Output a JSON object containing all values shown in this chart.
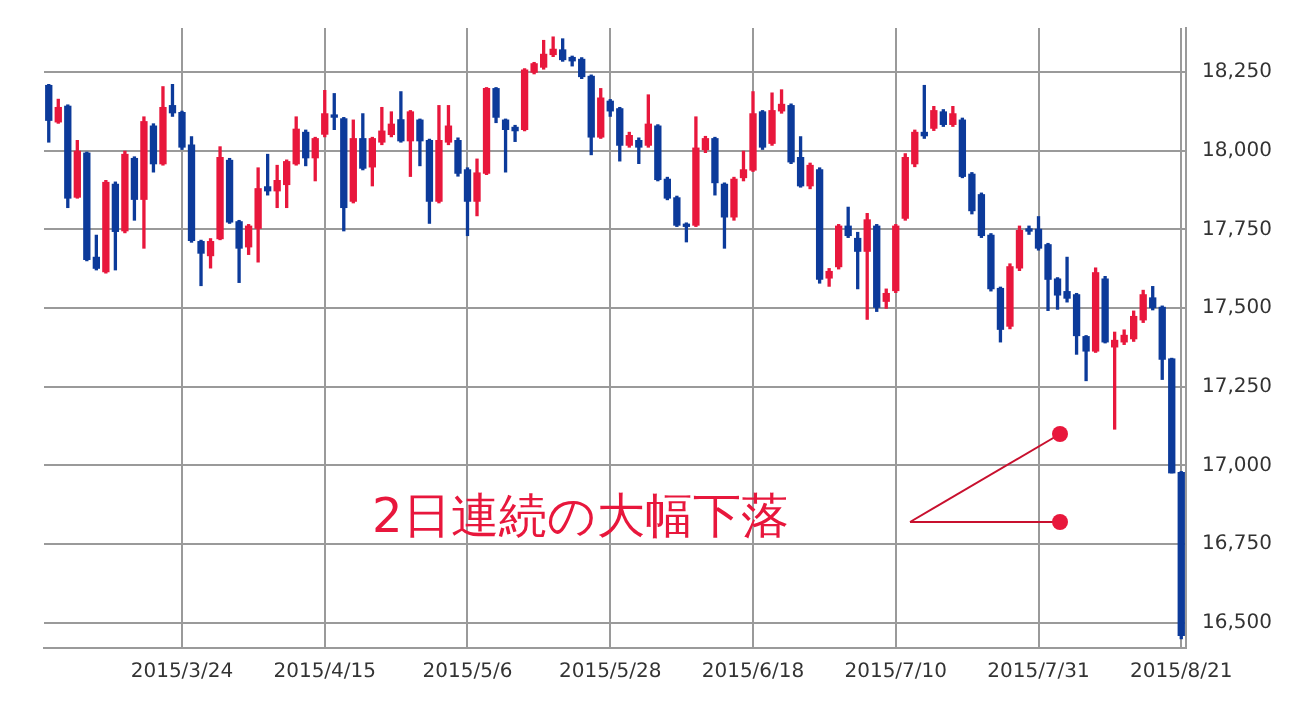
{
  "chart_data": {
    "type": "candlestick",
    "categories": [
      null,
      null,
      null,
      null,
      null,
      null,
      null,
      null,
      null,
      null,
      null,
      null,
      null,
      null,
      "2015/3/24",
      null,
      null,
      null,
      null,
      null,
      null,
      null,
      null,
      null,
      null,
      null,
      null,
      null,
      null,
      "2015/4/15",
      null,
      null,
      null,
      null,
      null,
      null,
      null,
      null,
      null,
      null,
      null,
      null,
      null,
      null,
      "2015/5/6",
      null,
      null,
      null,
      null,
      null,
      null,
      null,
      null,
      null,
      null,
      null,
      null,
      null,
      null,
      "2015/5/28",
      null,
      null,
      null,
      null,
      null,
      null,
      null,
      null,
      null,
      null,
      null,
      null,
      null,
      null,
      "2015/6/18",
      null,
      null,
      null,
      null,
      null,
      null,
      null,
      null,
      null,
      null,
      null,
      null,
      null,
      null,
      "2015/7/10",
      null,
      null,
      null,
      null,
      null,
      null,
      null,
      null,
      null,
      null,
      null,
      null,
      null,
      null,
      "2015/7/31",
      null,
      null,
      null,
      null,
      null,
      null,
      null,
      null,
      null,
      null,
      null,
      null,
      null,
      null,
      "2015/8/21"
    ],
    "ohlc": [
      [
        18207,
        18210,
        18028,
        18097
      ],
      [
        18092,
        18163,
        18088,
        18137
      ],
      [
        18141,
        18145,
        17820,
        17850
      ],
      [
        17853,
        18032,
        17850,
        17998
      ],
      [
        17992,
        17995,
        17651,
        17655
      ],
      [
        17661,
        17731,
        17622,
        17627
      ],
      [
        17616,
        17905,
        17612,
        17899
      ],
      [
        17893,
        17900,
        17622,
        17744
      ],
      [
        17746,
        17998,
        17740,
        17988
      ],
      [
        17975,
        17980,
        17780,
        17846
      ],
      [
        17846,
        18107,
        17691,
        18092
      ],
      [
        18078,
        18085,
        17933,
        17959
      ],
      [
        17959,
        18203,
        17955,
        18137
      ],
      [
        18143,
        18210,
        18110,
        18121
      ],
      [
        18121,
        18125,
        18005,
        18012
      ],
      [
        18018,
        18044,
        17710,
        17715
      ],
      [
        17711,
        17715,
        17572,
        17675
      ],
      [
        17667,
        17720,
        17628,
        17711
      ],
      [
        17721,
        18012,
        17718,
        17978
      ],
      [
        17969,
        17975,
        17770,
        17774
      ],
      [
        17774,
        17778,
        17582,
        17691
      ],
      [
        17695,
        17765,
        17671,
        17760
      ],
      [
        17754,
        17945,
        17647,
        17879
      ],
      [
        17885,
        17988,
        17860,
        17873
      ],
      [
        17873,
        17953,
        17820,
        17905
      ],
      [
        17893,
        17970,
        17820,
        17965
      ],
      [
        17959,
        18107,
        17955,
        18068
      ],
      [
        18058,
        18065,
        17953,
        17978
      ],
      [
        17978,
        18042,
        17905,
        18038
      ],
      [
        18053,
        18191,
        18045,
        18117
      ],
      [
        18111,
        18181,
        18068,
        18107
      ],
      [
        18101,
        18105,
        17746,
        17820
      ],
      [
        17840,
        18097,
        17835,
        18038
      ],
      [
        18038,
        18117,
        17940,
        17945
      ],
      [
        17949,
        18042,
        17889,
        18038
      ],
      [
        18028,
        18137,
        18020,
        18062
      ],
      [
        18052,
        18123,
        18045,
        18084
      ],
      [
        18098,
        18187,
        18028,
        18032
      ],
      [
        18032,
        18127,
        17919,
        18123
      ],
      [
        18097,
        18100,
        17953,
        18032
      ],
      [
        18032,
        18036,
        17770,
        17840
      ],
      [
        17840,
        18143,
        17835,
        18032
      ],
      [
        18028,
        18143,
        18020,
        18078
      ],
      [
        18032,
        18040,
        17920,
        17929
      ],
      [
        17939,
        17945,
        17731,
        17840
      ],
      [
        17840,
        17973,
        17794,
        17929
      ],
      [
        17929,
        18200,
        17925,
        18197
      ],
      [
        18197,
        18200,
        18090,
        18107
      ],
      [
        18097,
        18100,
        17933,
        18068
      ],
      [
        18074,
        18080,
        18030,
        18064
      ],
      [
        18068,
        18260,
        18064,
        18256
      ],
      [
        18250,
        18280,
        18245,
        18276
      ],
      [
        18266,
        18350,
        18260,
        18306
      ],
      [
        18306,
        18361,
        18300,
        18322
      ],
      [
        18320,
        18355,
        18285,
        18290
      ],
      [
        18296,
        18300,
        18270,
        18286
      ],
      [
        18290,
        18295,
        18230,
        18236
      ],
      [
        18236,
        18240,
        17988,
        18044
      ],
      [
        18044,
        18197,
        18040,
        18167
      ],
      [
        18157,
        18162,
        18110,
        18127
      ],
      [
        18133,
        18137,
        17968,
        18018
      ],
      [
        18018,
        18058,
        18012,
        18048
      ],
      [
        18032,
        18040,
        17960,
        18012
      ],
      [
        18018,
        18177,
        18012,
        18084
      ],
      [
        18078,
        18082,
        17905,
        17909
      ],
      [
        17909,
        17915,
        17845,
        17850
      ],
      [
        17850,
        17855,
        17760,
        17764
      ],
      [
        17766,
        17770,
        17711,
        17760
      ],
      [
        17764,
        18107,
        17760,
        18008
      ],
      [
        18004,
        18045,
        17995,
        18038
      ],
      [
        18038,
        18042,
        17860,
        17899
      ],
      [
        17893,
        17897,
        17691,
        17790
      ],
      [
        17790,
        17915,
        17780,
        17909
      ],
      [
        17915,
        17998,
        17905,
        17939
      ],
      [
        17939,
        18187,
        17935,
        18117
      ],
      [
        18123,
        18127,
        18005,
        18012
      ],
      [
        18024,
        18183,
        18018,
        18127
      ],
      [
        18127,
        18193,
        18120,
        18147
      ],
      [
        18143,
        18148,
        17960,
        17965
      ],
      [
        17978,
        18044,
        17885,
        17889
      ],
      [
        17889,
        17960,
        17880,
        17953
      ],
      [
        17939,
        17945,
        17580,
        17592
      ],
      [
        17596,
        17625,
        17570,
        17616
      ],
      [
        17632,
        17765,
        17625,
        17760
      ],
      [
        17760,
        17820,
        17725,
        17731
      ],
      [
        17721,
        17740,
        17562,
        17681
      ],
      [
        17681,
        17800,
        17465,
        17780
      ],
      [
        17760,
        17765,
        17490,
        17503
      ],
      [
        17522,
        17560,
        17500,
        17546
      ],
      [
        17556,
        17765,
        17550,
        17760
      ],
      [
        17786,
        17990,
        17780,
        17978
      ],
      [
        17959,
        18065,
        17950,
        18058
      ],
      [
        18058,
        18207,
        18040,
        18048
      ],
      [
        18072,
        18140,
        18065,
        18127
      ],
      [
        18123,
        18130,
        18078,
        18084
      ],
      [
        18084,
        18140,
        18078,
        18117
      ],
      [
        18097,
        18103,
        17915,
        17919
      ],
      [
        17925,
        17930,
        17800,
        17810
      ],
      [
        17860,
        17865,
        17725,
        17731
      ],
      [
        17731,
        17736,
        17555,
        17562
      ],
      [
        17562,
        17566,
        17393,
        17433
      ],
      [
        17443,
        17640,
        17435,
        17631
      ],
      [
        17628,
        17760,
        17620,
        17746
      ],
      [
        17750,
        17760,
        17735,
        17745
      ],
      [
        17750,
        17790,
        17685,
        17691
      ],
      [
        17701,
        17705,
        17493,
        17592
      ],
      [
        17592,
        17596,
        17497,
        17542
      ],
      [
        17552,
        17661,
        17520,
        17532
      ],
      [
        17542,
        17546,
        17354,
        17413
      ],
      [
        17409,
        17412,
        17270,
        17364
      ],
      [
        17364,
        17627,
        17360,
        17612
      ],
      [
        17592,
        17600,
        17390,
        17393
      ],
      [
        17377,
        17423,
        17116,
        17397
      ],
      [
        17393,
        17430,
        17385,
        17413
      ],
      [
        17403,
        17490,
        17395,
        17473
      ],
      [
        17463,
        17556,
        17455,
        17542
      ],
      [
        17532,
        17568,
        17495,
        17502
      ],
      [
        17502,
        17506,
        17274,
        17338
      ],
      [
        17338,
        17340,
        16977,
        16977
      ],
      [
        16977,
        16980,
        16450,
        16460
      ]
    ],
    "colors": [
      "#0c3a9a",
      "#e8173c",
      "#0c3a9a",
      "#e8173c",
      "#0c3a9a",
      "#0c3a9a",
      "#e8173c",
      "#0c3a9a",
      "#e8173c",
      "#0c3a9a",
      "#e8173c",
      "#0c3a9a",
      "#e8173c",
      "#0c3a9a",
      "#0c3a9a",
      "#0c3a9a",
      "#0c3a9a",
      "#e8173c",
      "#e8173c",
      "#0c3a9a",
      "#0c3a9a",
      "#e8173c",
      "#e8173c",
      "#0c3a9a",
      "#e8173c",
      "#e8173c",
      "#e8173c",
      "#0c3a9a",
      "#e8173c",
      "#e8173c",
      "#0c3a9a",
      "#0c3a9a",
      "#e8173c",
      "#0c3a9a",
      "#e8173c",
      "#e8173c",
      "#e8173c",
      "#0c3a9a",
      "#e8173c",
      "#0c3a9a",
      "#0c3a9a",
      "#e8173c",
      "#e8173c",
      "#0c3a9a",
      "#0c3a9a",
      "#e8173c",
      "#e8173c",
      "#0c3a9a",
      "#0c3a9a",
      "#0c3a9a",
      "#e8173c",
      "#e8173c",
      "#e8173c",
      "#e8173c",
      "#0c3a9a",
      "#0c3a9a",
      "#0c3a9a",
      "#0c3a9a",
      "#e8173c",
      "#0c3a9a",
      "#0c3a9a",
      "#e8173c",
      "#0c3a9a",
      "#e8173c",
      "#0c3a9a",
      "#0c3a9a",
      "#0c3a9a",
      "#0c3a9a",
      "#e8173c",
      "#e8173c",
      "#0c3a9a",
      "#0c3a9a",
      "#e8173c",
      "#e8173c",
      "#e8173c",
      "#0c3a9a",
      "#e8173c",
      "#e8173c",
      "#0c3a9a",
      "#0c3a9a",
      "#e8173c",
      "#0c3a9a",
      "#e8173c",
      "#e8173c",
      "#0c3a9a",
      "#0c3a9a",
      "#e8173c",
      "#0c3a9a",
      "#e8173c",
      "#e8173c",
      "#e8173c",
      "#e8173c",
      "#0c3a9a",
      "#e8173c",
      "#0c3a9a",
      "#e8173c",
      "#0c3a9a",
      "#0c3a9a",
      "#0c3a9a",
      "#0c3a9a",
      "#0c3a9a",
      "#e8173c",
      "#e8173c",
      "#0c3a9a",
      "#0c3a9a",
      "#0c3a9a",
      "#0c3a9a",
      "#0c3a9a",
      "#0c3a9a",
      "#0c3a9a",
      "#e8173c",
      "#0c3a9a",
      "#e8173c",
      "#e8173c",
      "#e8173c",
      "#e8173c",
      "#0c3a9a",
      "#0c3a9a",
      "#0c3a9a",
      "#0c3a9a"
    ],
    "ylim": [
      16420,
      18390
    ],
    "yticks": [
      {
        "value": 16500,
        "label": "16,500"
      },
      {
        "value": 16750,
        "label": "16,750"
      },
      {
        "value": 17000,
        "label": "17,000"
      },
      {
        "value": 17250,
        "label": "17,250"
      },
      {
        "value": 17500,
        "label": "17,500"
      },
      {
        "value": 17750,
        "label": "17,750"
      },
      {
        "value": 18000,
        "label": "18,000"
      },
      {
        "value": 18250,
        "label": "18,250"
      }
    ],
    "grid": true,
    "annotations": [
      "2日連続の大幅下落"
    ]
  }
}
